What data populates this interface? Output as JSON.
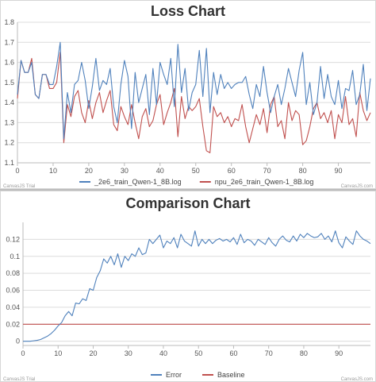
{
  "chart_data": [
    {
      "type": "line",
      "title": "Loss Chart",
      "credit_left": "CanvasJS Trial",
      "credit_right": "CanvasJS.com",
      "ylim": [
        1.1,
        1.8
      ],
      "yticks": [
        1.1,
        1.2,
        1.3,
        1.4,
        1.5,
        1.6,
        1.7,
        1.8
      ],
      "xlim": [
        0,
        99
      ],
      "xticks": [
        0,
        10,
        20,
        30,
        40,
        50,
        60,
        70,
        80,
        90
      ],
      "grid": true,
      "legend_position": "bottom",
      "colors": {
        "series1": "#4f81bc",
        "series2": "#c0504e"
      },
      "series": [
        {
          "name": "_2e6_train_Qwen-1_8B.log",
          "values": [
            1.44,
            1.61,
            1.55,
            1.55,
            1.6,
            1.44,
            1.42,
            1.54,
            1.54,
            1.49,
            1.49,
            1.58,
            1.7,
            1.22,
            1.45,
            1.35,
            1.49,
            1.51,
            1.6,
            1.51,
            1.37,
            1.48,
            1.62,
            1.46,
            1.51,
            1.49,
            1.57,
            1.38,
            1.3,
            1.49,
            1.61,
            1.53,
            1.27,
            1.55,
            1.4,
            1.47,
            1.54,
            1.34,
            1.57,
            1.39,
            1.6,
            1.54,
            1.49,
            1.62,
            1.38,
            1.69,
            1.45,
            1.57,
            1.36,
            1.45,
            1.49,
            1.66,
            1.43,
            1.67,
            1.35,
            1.55,
            1.44,
            1.54,
            1.47,
            1.5,
            1.47,
            1.49,
            1.5,
            1.5,
            1.53,
            1.44,
            1.37,
            1.49,
            1.43,
            1.58,
            1.45,
            1.35,
            1.43,
            1.49,
            1.39,
            1.47,
            1.57,
            1.5,
            1.43,
            1.56,
            1.65,
            1.39,
            1.5,
            1.34,
            1.4,
            1.58,
            1.42,
            1.54,
            1.43,
            1.39,
            1.51,
            1.37,
            1.47,
            1.46,
            1.56,
            1.39,
            1.44,
            1.59,
            1.36,
            1.52
          ]
        },
        {
          "name": "npu_2e6_train_Qwen-1_8B.log",
          "values": [
            1.42,
            1.61,
            1.55,
            1.55,
            1.62,
            1.44,
            1.42,
            1.54,
            1.54,
            1.47,
            1.47,
            1.5,
            1.65,
            1.2,
            1.39,
            1.33,
            1.43,
            1.46,
            1.35,
            1.3,
            1.41,
            1.32,
            1.4,
            1.45,
            1.35,
            1.41,
            1.46,
            1.29,
            1.26,
            1.38,
            1.33,
            1.29,
            1.39,
            1.3,
            1.22,
            1.33,
            1.37,
            1.28,
            1.31,
            1.39,
            1.44,
            1.29,
            1.35,
            1.4,
            1.47,
            1.23,
            1.43,
            1.32,
            1.38,
            1.36,
            1.38,
            1.42,
            1.28,
            1.16,
            1.15,
            1.38,
            1.33,
            1.35,
            1.3,
            1.33,
            1.28,
            1.32,
            1.31,
            1.39,
            1.28,
            1.2,
            1.27,
            1.34,
            1.29,
            1.37,
            1.25,
            1.39,
            1.43,
            1.28,
            1.31,
            1.22,
            1.4,
            1.31,
            1.36,
            1.34,
            1.19,
            1.21,
            1.28,
            1.37,
            1.4,
            1.32,
            1.35,
            1.3,
            1.36,
            1.22,
            1.34,
            1.3,
            1.43,
            1.29,
            1.32,
            1.23,
            1.45,
            1.36,
            1.31,
            1.35
          ]
        }
      ]
    },
    {
      "type": "line",
      "title": "Comparison Chart",
      "credit_left": "CanvasJS Trial",
      "credit_right": "CanvasJS.com",
      "ylim": [
        -0.005,
        0.14
      ],
      "yticks": [
        0,
        0.02,
        0.04,
        0.06,
        0.08,
        0.1,
        0.12
      ],
      "xlim": [
        0,
        99
      ],
      "xticks": [
        0,
        10,
        20,
        30,
        40,
        50,
        60,
        70,
        80,
        90
      ],
      "grid": true,
      "legend_position": "bottom",
      "colors": {
        "series1": "#4f81bc",
        "series2": "#c0504e"
      },
      "series": [
        {
          "name": "Error",
          "values": [
            0,
            0,
            0,
            0.0005,
            0.001,
            0.002,
            0.004,
            0.006,
            0.009,
            0.013,
            0.018,
            0.022,
            0.03,
            0.035,
            0.03,
            0.045,
            0.044,
            0.05,
            0.048,
            0.062,
            0.06,
            0.075,
            0.083,
            0.097,
            0.092,
            0.1,
            0.09,
            0.103,
            0.087,
            0.1,
            0.095,
            0.103,
            0.1,
            0.11,
            0.102,
            0.104,
            0.12,
            0.115,
            0.12,
            0.125,
            0.11,
            0.118,
            0.115,
            0.122,
            0.11,
            0.126,
            0.118,
            0.115,
            0.112,
            0.13,
            0.112,
            0.12,
            0.115,
            0.12,
            0.115,
            0.119,
            0.121,
            0.118,
            0.12,
            0.117,
            0.122,
            0.114,
            0.126,
            0.116,
            0.12,
            0.118,
            0.113,
            0.12,
            0.117,
            0.114,
            0.122,
            0.116,
            0.112,
            0.12,
            0.124,
            0.119,
            0.117,
            0.124,
            0.118,
            0.126,
            0.122,
            0.127,
            0.124,
            0.122,
            0.123,
            0.127,
            0.12,
            0.124,
            0.117,
            0.13,
            0.116,
            0.11,
            0.123,
            0.118,
            0.114,
            0.13,
            0.124,
            0.12,
            0.118,
            0.115
          ]
        },
        {
          "name": "Baseline",
          "values": [
            0.02,
            0.02,
            0.02,
            0.02,
            0.02,
            0.02,
            0.02,
            0.02,
            0.02,
            0.02,
            0.02,
            0.02,
            0.02,
            0.02,
            0.02,
            0.02,
            0.02,
            0.02,
            0.02,
            0.02,
            0.02,
            0.02,
            0.02,
            0.02,
            0.02,
            0.02,
            0.02,
            0.02,
            0.02,
            0.02,
            0.02,
            0.02,
            0.02,
            0.02,
            0.02,
            0.02,
            0.02,
            0.02,
            0.02,
            0.02,
            0.02,
            0.02,
            0.02,
            0.02,
            0.02,
            0.02,
            0.02,
            0.02,
            0.02,
            0.02,
            0.02,
            0.02,
            0.02,
            0.02,
            0.02,
            0.02,
            0.02,
            0.02,
            0.02,
            0.02,
            0.02,
            0.02,
            0.02,
            0.02,
            0.02,
            0.02,
            0.02,
            0.02,
            0.02,
            0.02,
            0.02,
            0.02,
            0.02,
            0.02,
            0.02,
            0.02,
            0.02,
            0.02,
            0.02,
            0.02,
            0.02,
            0.02,
            0.02,
            0.02,
            0.02,
            0.02,
            0.02,
            0.02,
            0.02,
            0.02,
            0.02,
            0.02,
            0.02,
            0.02,
            0.02,
            0.02,
            0.02,
            0.02,
            0.02,
            0.02
          ]
        }
      ]
    }
  ]
}
